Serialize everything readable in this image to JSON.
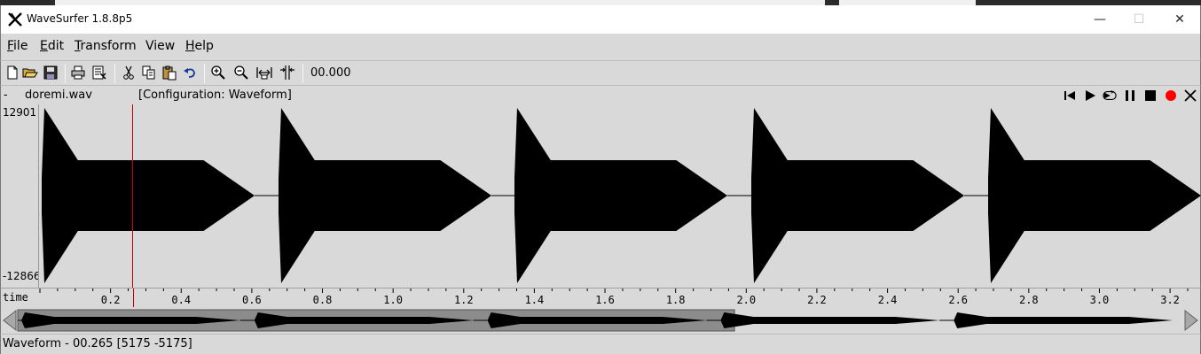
{
  "window": {
    "title": "WaveSurfer 1.8.8p5",
    "controls": {
      "minimize": "—",
      "maximize": "☐",
      "close": "✕"
    }
  },
  "menu": {
    "items": [
      {
        "label": "File",
        "underline": "F",
        "rest": "ile"
      },
      {
        "label": "Edit",
        "underline": "E",
        "rest": "dit"
      },
      {
        "label": "Transform",
        "underline": "T",
        "rest": "ransform"
      },
      {
        "label": "View",
        "underline": "",
        "rest": "View"
      },
      {
        "label": "Help",
        "underline": "H",
        "rest": "elp"
      }
    ]
  },
  "toolbar": {
    "icons": [
      "new-file-icon",
      "open-folder-icon",
      "save-icon",
      "print-icon",
      "properties-icon",
      "cut-icon",
      "copy-icon",
      "paste-icon",
      "undo-icon",
      "zoom-in-icon",
      "zoom-out-icon",
      "zoom-fit-icon",
      "zoom-selection-icon"
    ],
    "time": "00.000"
  },
  "sound": {
    "dash": "-",
    "filename": "doremi.wav",
    "configuration": "[Configuration: Waveform]",
    "transport_icons": [
      "skip-to-start-icon",
      "play-icon",
      "play-loop-icon",
      "pause-icon",
      "stop-icon",
      "record-icon",
      "close-icon"
    ],
    "record_color": "#ff0000"
  },
  "waveform": {
    "y_max": "12901",
    "y_min": "-12866",
    "cursor_time": 0.265,
    "cursor_color": "#cc0000",
    "notes": 5
  },
  "time_axis": {
    "label": "time",
    "range": [
      0,
      3.25
    ],
    "ticks": [
      "0.2",
      "0.4",
      "0.6",
      "0.8",
      "1.0",
      "1.2",
      "1.4",
      "1.6",
      "1.8",
      "2.0",
      "2.2",
      "2.4",
      "2.6",
      "2.8",
      "3.0",
      "3.2"
    ]
  },
  "scroll": {
    "visible_fraction": 0.615
  },
  "status": {
    "text": "Waveform - 00.265 [5175 -5175]"
  }
}
